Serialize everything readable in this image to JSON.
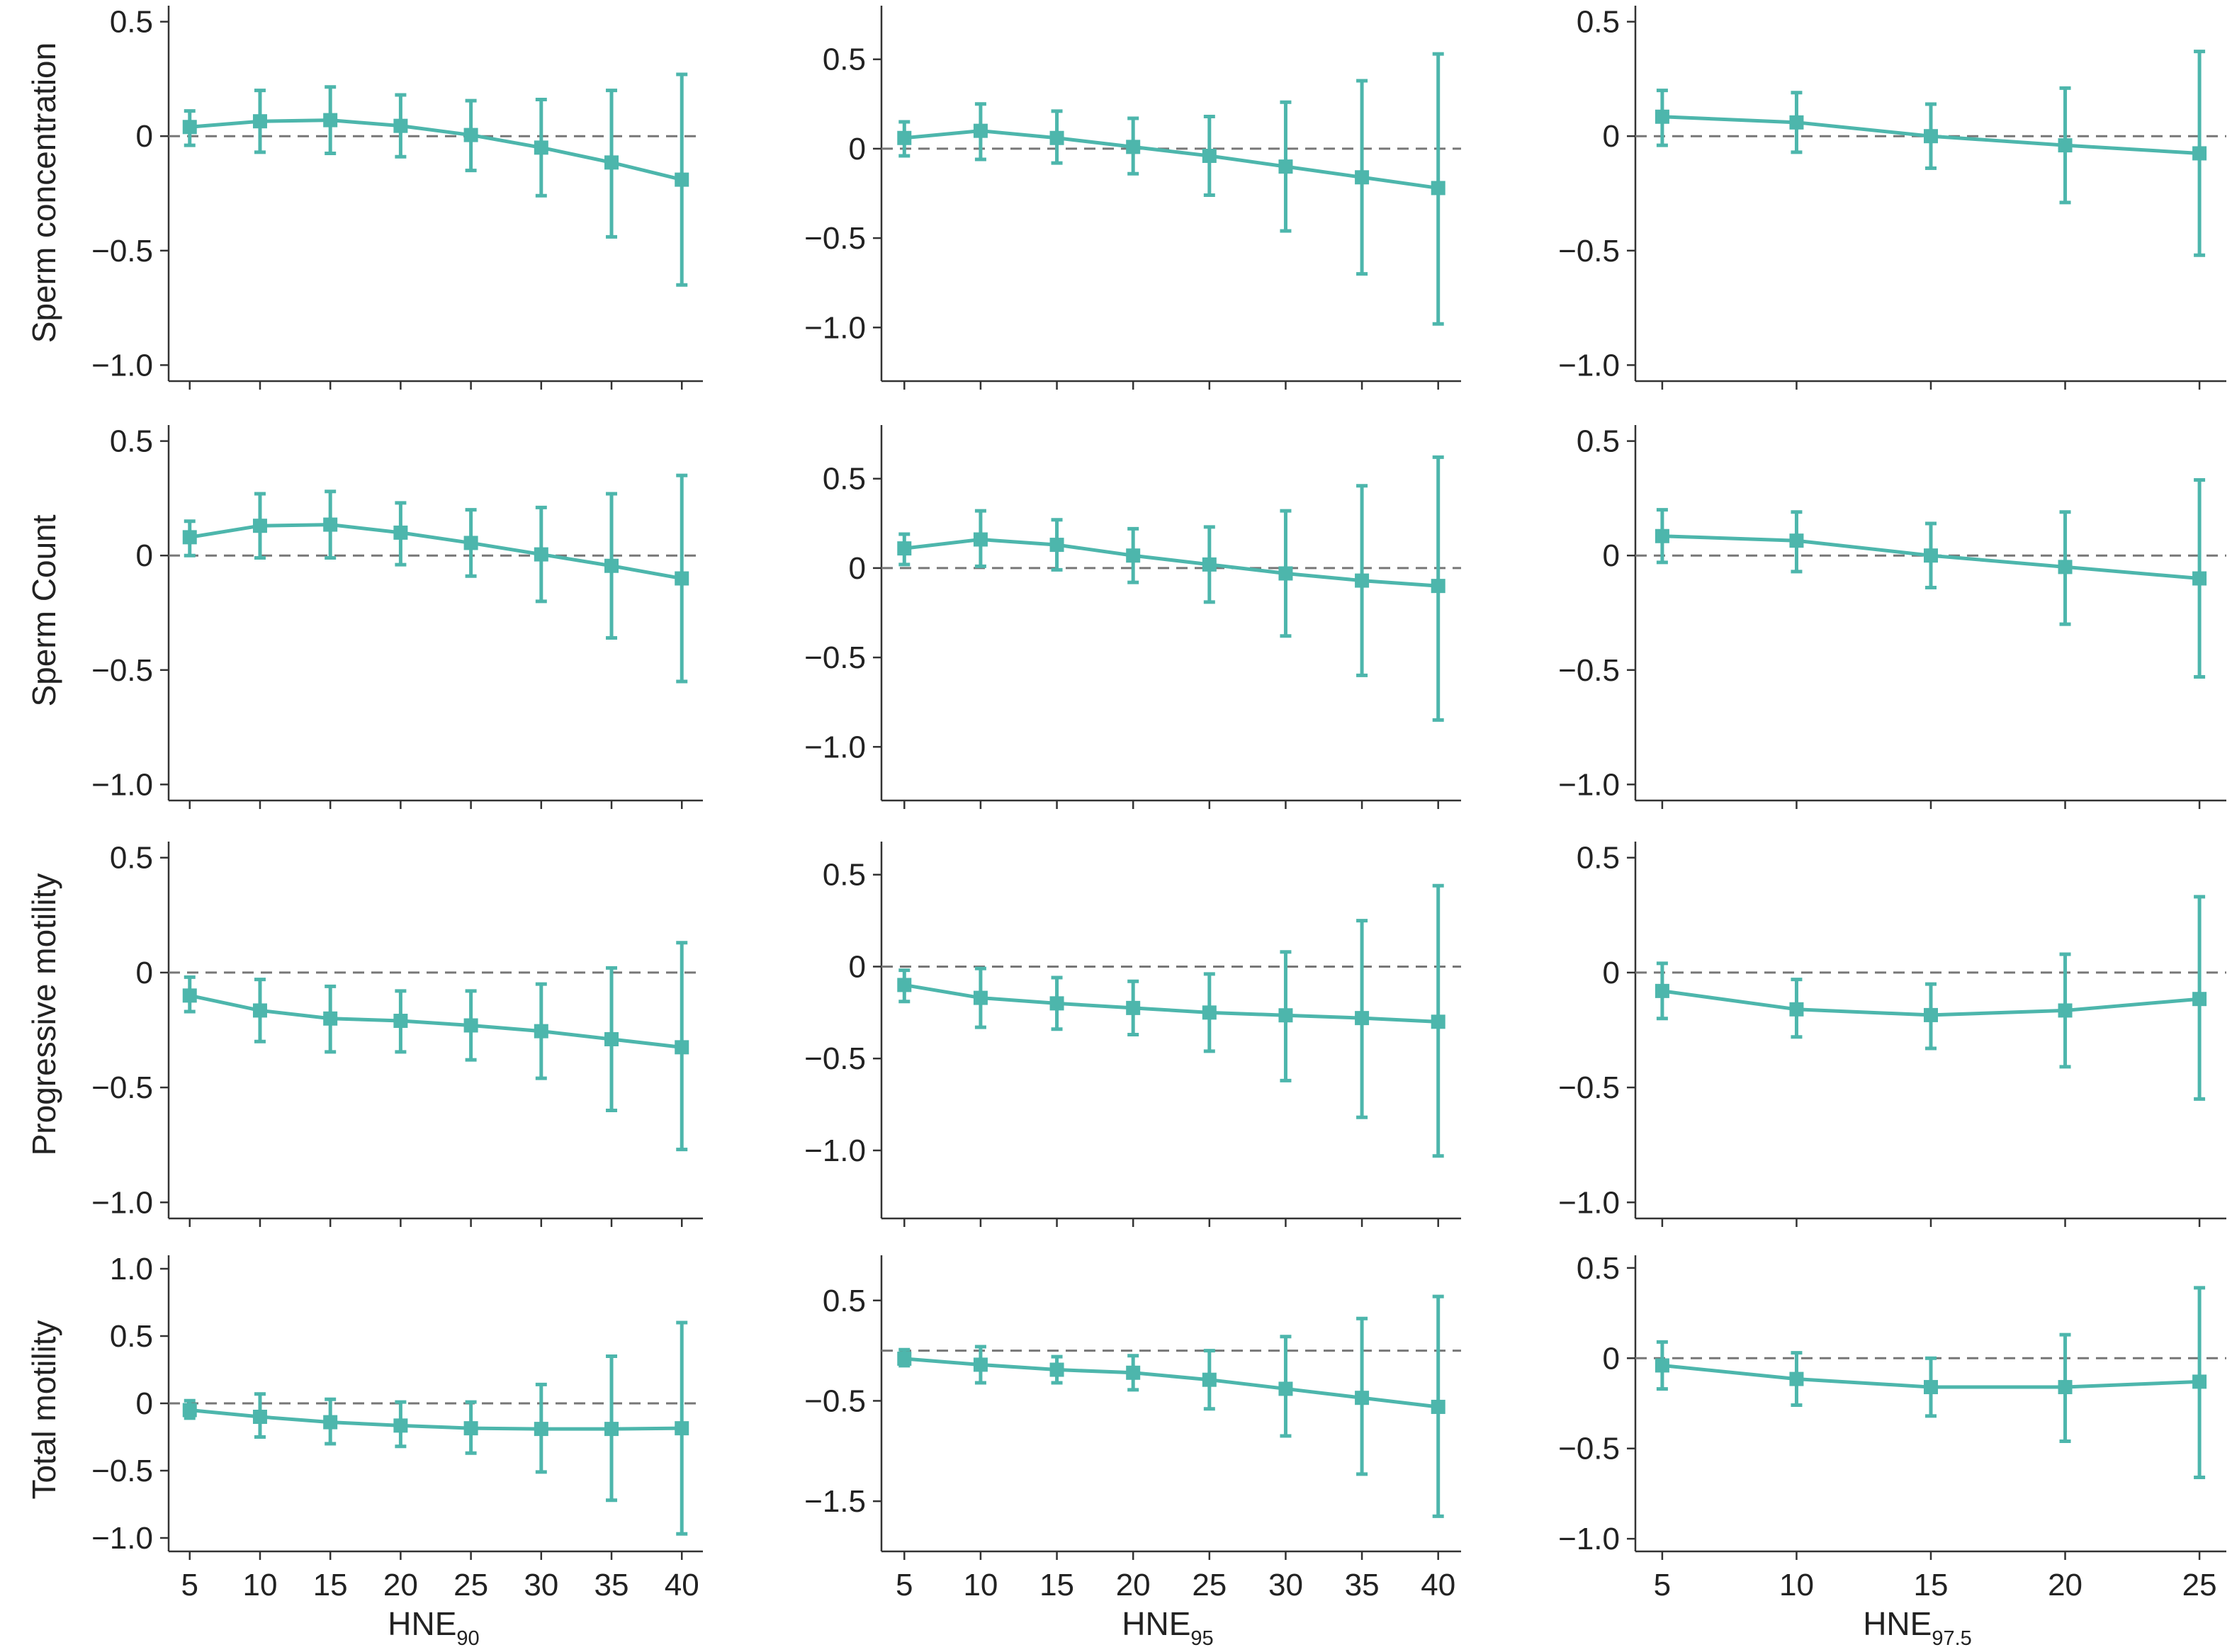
{
  "style": {
    "series_color": "#4db6ac",
    "reference_line_color": "#777777",
    "axis_color": "#333333"
  },
  "row_labels": [
    "Sperm concentration",
    "Sperm Count",
    "Progressive motility",
    "Total motility"
  ],
  "x_axis_labels": [
    {
      "main": "HNE",
      "sub": "90"
    },
    {
      "main": "HNE",
      "sub": "95"
    },
    {
      "main": "HNE",
      "sub": "97.5"
    }
  ],
  "chart_data": [
    {
      "type": "line",
      "row": 0,
      "col": 0,
      "reference_y": 0,
      "x": [
        5,
        10,
        15,
        20,
        25,
        30,
        35,
        40
      ],
      "xlim": [
        3.5,
        41.5
      ],
      "ylim": [
        -1.07,
        0.57
      ],
      "yticks": [
        0.5,
        0,
        -0.5,
        -1.0
      ],
      "ytick_labels": [
        "0.5",
        "0",
        "−0.5",
        "−1.0"
      ],
      "series": [
        {
          "y": [
            0.04,
            0.065,
            0.07,
            0.045,
            0.005,
            -0.05,
            -0.115,
            -0.19
          ],
          "lower": [
            -0.04,
            -0.07,
            -0.075,
            -0.09,
            -0.15,
            -0.26,
            -0.44,
            -0.65
          ],
          "upper": [
            0.11,
            0.2,
            0.215,
            0.18,
            0.155,
            0.16,
            0.2,
            0.27
          ]
        }
      ]
    },
    {
      "type": "line",
      "row": 0,
      "col": 1,
      "reference_y": 0,
      "x": [
        5,
        10,
        15,
        20,
        25,
        30,
        35,
        40
      ],
      "xlim": [
        3.5,
        41.5
      ],
      "ylim": [
        -1.3,
        0.8
      ],
      "yticks": [
        0.5,
        0,
        -0.5,
        -1.0
      ],
      "ytick_labels": [
        "0.5",
        "0",
        "−0.5",
        "−1.0"
      ],
      "series": [
        {
          "y": [
            0.06,
            0.1,
            0.06,
            0.01,
            -0.04,
            -0.1,
            -0.16,
            -0.22
          ],
          "lower": [
            -0.04,
            -0.06,
            -0.08,
            -0.14,
            -0.26,
            -0.46,
            -0.7,
            -0.98
          ],
          "upper": [
            0.15,
            0.25,
            0.21,
            0.17,
            0.18,
            0.26,
            0.38,
            0.53
          ]
        }
      ]
    },
    {
      "type": "line",
      "row": 0,
      "col": 2,
      "reference_y": 0,
      "x": [
        5,
        10,
        15,
        20,
        25
      ],
      "xlim": [
        4,
        26
      ],
      "ylim": [
        -1.07,
        0.57
      ],
      "yticks": [
        0.5,
        0,
        -0.5,
        -1.0
      ],
      "ytick_labels": [
        "0.5",
        "0",
        "−0.5",
        "−1.0"
      ],
      "series": [
        {
          "y": [
            0.085,
            0.06,
            0.0,
            -0.04,
            -0.075
          ],
          "lower": [
            -0.04,
            -0.07,
            -0.14,
            -0.29,
            -0.52
          ],
          "upper": [
            0.2,
            0.19,
            0.14,
            0.21,
            0.37
          ]
        }
      ]
    },
    {
      "type": "line",
      "row": 1,
      "col": 0,
      "reference_y": 0,
      "x": [
        5,
        10,
        15,
        20,
        25,
        30,
        35,
        40
      ],
      "xlim": [
        3.5,
        41.5
      ],
      "ylim": [
        -1.07,
        0.57
      ],
      "yticks": [
        0.5,
        0,
        -0.5,
        -1.0
      ],
      "ytick_labels": [
        "0.5",
        "0",
        "−0.5",
        "−1.0"
      ],
      "series": [
        {
          "y": [
            0.08,
            0.13,
            0.135,
            0.1,
            0.055,
            0.005,
            -0.045,
            -0.1
          ],
          "lower": [
            0.0,
            -0.01,
            -0.01,
            -0.04,
            -0.09,
            -0.2,
            -0.36,
            -0.55
          ],
          "upper": [
            0.15,
            0.27,
            0.28,
            0.23,
            0.2,
            0.21,
            0.27,
            0.35
          ]
        }
      ]
    },
    {
      "type": "line",
      "row": 1,
      "col": 1,
      "reference_y": 0,
      "x": [
        5,
        10,
        15,
        20,
        25,
        30,
        35,
        40
      ],
      "xlim": [
        3.5,
        41.5
      ],
      "ylim": [
        -1.3,
        0.8
      ],
      "yticks": [
        0.5,
        0,
        -0.5,
        -1.0
      ],
      "ytick_labels": [
        "0.5",
        "0",
        "−0.5",
        "−1.0"
      ],
      "series": [
        {
          "y": [
            0.11,
            0.16,
            0.13,
            0.07,
            0.02,
            -0.03,
            -0.07,
            -0.1
          ],
          "lower": [
            0.02,
            0.01,
            -0.01,
            -0.08,
            -0.19,
            -0.38,
            -0.6,
            -0.85
          ],
          "upper": [
            0.19,
            0.32,
            0.27,
            0.22,
            0.23,
            0.32,
            0.46,
            0.62
          ]
        }
      ]
    },
    {
      "type": "line",
      "row": 1,
      "col": 2,
      "reference_y": 0,
      "x": [
        5,
        10,
        15,
        20,
        25
      ],
      "xlim": [
        4,
        26
      ],
      "ylim": [
        -1.07,
        0.57
      ],
      "yticks": [
        0.5,
        0,
        -0.5,
        -1.0
      ],
      "ytick_labels": [
        "0.5",
        "0",
        "−0.5",
        "−1.0"
      ],
      "series": [
        {
          "y": [
            0.085,
            0.065,
            0.0,
            -0.05,
            -0.1
          ],
          "lower": [
            -0.03,
            -0.07,
            -0.14,
            -0.3,
            -0.53
          ],
          "upper": [
            0.2,
            0.19,
            0.14,
            0.19,
            0.33
          ]
        }
      ]
    },
    {
      "type": "line",
      "row": 2,
      "col": 0,
      "reference_y": 0,
      "x": [
        5,
        10,
        15,
        20,
        25,
        30,
        35,
        40
      ],
      "xlim": [
        3.5,
        41.5
      ],
      "ylim": [
        -1.07,
        0.57
      ],
      "yticks": [
        0.5,
        0,
        -0.5,
        -1.0
      ],
      "ytick_labels": [
        "0.5",
        "0",
        "−0.5",
        "−1.0"
      ],
      "series": [
        {
          "y": [
            -0.1,
            -0.165,
            -0.2,
            -0.21,
            -0.23,
            -0.255,
            -0.29,
            -0.325
          ],
          "lower": [
            -0.17,
            -0.3,
            -0.345,
            -0.345,
            -0.38,
            -0.46,
            -0.6,
            -0.77
          ],
          "upper": [
            -0.02,
            -0.03,
            -0.06,
            -0.08,
            -0.08,
            -0.05,
            0.02,
            0.13
          ]
        }
      ]
    },
    {
      "type": "line",
      "row": 2,
      "col": 1,
      "reference_y": 0,
      "x": [
        5,
        10,
        15,
        20,
        25,
        30,
        35,
        40
      ],
      "xlim": [
        3.5,
        41.5
      ],
      "ylim": [
        -1.37,
        0.68
      ],
      "yticks": [
        0.5,
        0,
        -0.5,
        -1.0
      ],
      "ytick_labels": [
        "0.5",
        "0",
        "−0.5",
        "−1.0"
      ],
      "series": [
        {
          "y": [
            -0.1,
            -0.17,
            -0.2,
            -0.225,
            -0.25,
            -0.265,
            -0.28,
            -0.3
          ],
          "lower": [
            -0.19,
            -0.33,
            -0.34,
            -0.37,
            -0.46,
            -0.62,
            -0.82,
            -1.03
          ],
          "upper": [
            -0.02,
            -0.01,
            -0.06,
            -0.08,
            -0.04,
            0.08,
            0.25,
            0.44
          ]
        }
      ]
    },
    {
      "type": "line",
      "row": 2,
      "col": 2,
      "reference_y": 0,
      "x": [
        5,
        10,
        15,
        20,
        25
      ],
      "xlim": [
        4,
        26
      ],
      "ylim": [
        -1.07,
        0.57
      ],
      "yticks": [
        0.5,
        0,
        -0.5,
        -1.0
      ],
      "ytick_labels": [
        "0.5",
        "0",
        "−0.5",
        "−1.0"
      ],
      "series": [
        {
          "y": [
            -0.08,
            -0.16,
            -0.185,
            -0.165,
            -0.115
          ],
          "lower": [
            -0.2,
            -0.28,
            -0.33,
            -0.41,
            -0.55
          ],
          "upper": [
            0.04,
            -0.03,
            -0.05,
            0.08,
            0.33
          ]
        }
      ]
    },
    {
      "type": "line",
      "row": 3,
      "col": 0,
      "reference_y": 0,
      "x": [
        5,
        10,
        15,
        20,
        25,
        30,
        35,
        40
      ],
      "xlim": [
        3.5,
        41.5
      ],
      "ylim": [
        -1.1,
        1.1
      ],
      "yticks": [
        1.0,
        0.5,
        0,
        -0.5,
        -1.0
      ],
      "ytick_labels": [
        "1.0",
        "0.5",
        "0",
        "−0.5",
        "−1.0"
      ],
      "series": [
        {
          "y": [
            -0.05,
            -0.1,
            -0.14,
            -0.165,
            -0.185,
            -0.19,
            -0.19,
            -0.185
          ],
          "lower": [
            -0.11,
            -0.25,
            -0.3,
            -0.32,
            -0.37,
            -0.51,
            -0.72,
            -0.97
          ],
          "upper": [
            0.02,
            0.07,
            0.03,
            0.01,
            0.01,
            0.14,
            0.35,
            0.6
          ]
        }
      ]
    },
    {
      "type": "line",
      "row": 3,
      "col": 1,
      "reference_y": 0,
      "x": [
        5,
        10,
        15,
        20,
        25,
        30,
        35,
        40
      ],
      "xlim": [
        3.5,
        41.5
      ],
      "ylim": [
        -2.0,
        0.95
      ],
      "yticks": [
        0.5,
        -0.5,
        -1.5
      ],
      "ytick_labels": [
        "0.5",
        "−0.5",
        "−1.5"
      ],
      "series": [
        {
          "y": [
            -0.08,
            -0.14,
            -0.19,
            -0.22,
            -0.29,
            -0.38,
            -0.47,
            -0.56
          ],
          "lower": [
            -0.15,
            -0.32,
            -0.32,
            -0.39,
            -0.58,
            -0.85,
            -1.23,
            -1.65
          ],
          "upper": [
            0.01,
            0.04,
            -0.06,
            -0.05,
            0.0,
            0.14,
            0.32,
            0.54
          ]
        }
      ]
    },
    {
      "type": "line",
      "row": 3,
      "col": 2,
      "reference_y": 0,
      "x": [
        5,
        10,
        15,
        20,
        25
      ],
      "xlim": [
        4,
        26
      ],
      "ylim": [
        -1.07,
        0.57
      ],
      "yticks": [
        0.5,
        0,
        -0.5,
        -1.0
      ],
      "ytick_labels": [
        "0.5",
        "0",
        "−0.5",
        "−1.0"
      ],
      "series": [
        {
          "y": [
            -0.04,
            -0.115,
            -0.16,
            -0.16,
            -0.13
          ],
          "lower": [
            -0.17,
            -0.26,
            -0.32,
            -0.46,
            -0.66
          ],
          "upper": [
            0.09,
            0.03,
            0.0,
            0.13,
            0.39
          ]
        }
      ]
    }
  ]
}
